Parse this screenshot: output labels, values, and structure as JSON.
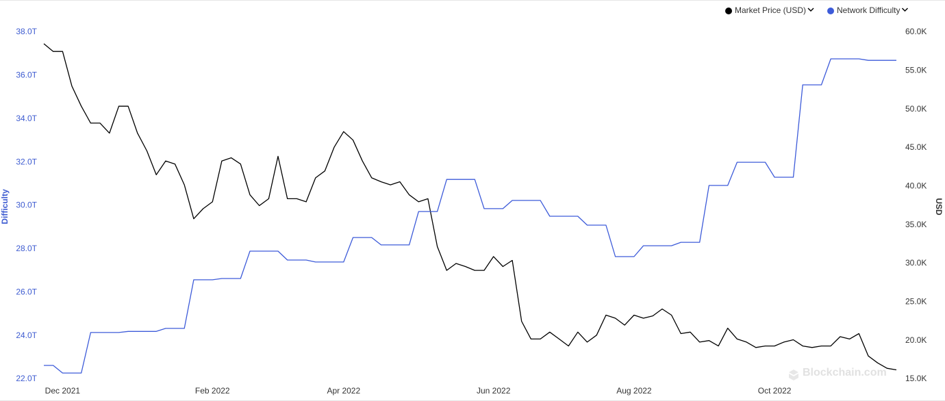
{
  "chart_data": {
    "type": "line",
    "legend_position": "top-right",
    "y_label": "Difficulty",
    "y2_label": "USD",
    "watermark": "Blockchain.com",
    "categories": [
      null,
      null,
      "Dec 2021",
      null,
      null,
      null,
      null,
      null,
      null,
      null,
      null,
      null,
      null,
      null,
      null,
      null,
      null,
      null,
      "Feb 2022",
      null,
      null,
      null,
      null,
      null,
      null,
      null,
      null,
      null,
      null,
      null,
      null,
      null,
      "Apr 2022",
      null,
      null,
      null,
      null,
      null,
      null,
      null,
      null,
      null,
      null,
      null,
      null,
      null,
      null,
      null,
      "Jun 2022",
      null,
      null,
      null,
      null,
      null,
      null,
      null,
      null,
      null,
      null,
      null,
      null,
      null,
      null,
      "Aug 2022",
      null,
      null,
      null,
      null,
      null,
      null,
      null,
      null,
      null,
      null,
      null,
      null,
      null,
      null,
      "Oct 2022",
      null,
      null,
      null,
      null,
      null,
      null,
      null,
      null,
      null,
      null,
      null,
      null,
      null
    ],
    "series": [
      {
        "name": "Market Price (USD)",
        "color": "#000000",
        "axis": "y2",
        "values": [
          58.5,
          57.5,
          57.5,
          53,
          50.4,
          48.2,
          48.2,
          46.9,
          50.4,
          50.4,
          46.9,
          44.6,
          41.5,
          43.3,
          42.9,
          40.2,
          35.8,
          37.1,
          38,
          43.3,
          43.7,
          42.9,
          38.9,
          37.5,
          38.4,
          43.9,
          38.4,
          38.4,
          38,
          41.1,
          42,
          45.1,
          47.1,
          46,
          43.3,
          41.1,
          40.6,
          40.2,
          40.6,
          38.9,
          38,
          38.4,
          32.2,
          29.1,
          30,
          29.6,
          29.1,
          29.1,
          30.9,
          29.6,
          30.4,
          22.5,
          20.2,
          20.2,
          21.1,
          20.2,
          19.3,
          21.1,
          19.8,
          20.7,
          23.3,
          22.9,
          22,
          23.3,
          22.9,
          23.2,
          24.1,
          23.3,
          20.9,
          21.1,
          19.8,
          20,
          19.3,
          21.6,
          20.2,
          19.8,
          19.1,
          19.3,
          19.3,
          19.8,
          20.1,
          19.3,
          19.1,
          19.3,
          19.3,
          20.5,
          20.2,
          20.9,
          18,
          17.1,
          16.4,
          16.2
        ]
      },
      {
        "name": "Network Difficulty",
        "color": "#3d5bd9",
        "values": [
          22.63,
          22.63,
          22.28,
          22.28,
          22.28,
          24.15,
          24.15,
          24.15,
          24.15,
          24.2,
          24.2,
          24.2,
          24.2,
          24.34,
          24.34,
          24.34,
          26.58,
          26.58,
          26.58,
          26.64,
          26.64,
          26.64,
          27.9,
          27.9,
          27.9,
          27.9,
          27.49,
          27.49,
          27.49,
          27.4,
          27.4,
          27.4,
          27.4,
          28.53,
          28.53,
          28.53,
          28.19,
          28.19,
          28.19,
          28.19,
          29.73,
          29.73,
          29.73,
          31.21,
          31.21,
          31.21,
          31.21,
          29.86,
          29.86,
          29.86,
          30.24,
          30.24,
          30.24,
          30.24,
          29.51,
          29.51,
          29.51,
          29.51,
          29.1,
          29.1,
          29.1,
          27.65,
          27.65,
          27.65,
          28.15,
          28.15,
          28.15,
          28.15,
          28.31,
          28.31,
          28.31,
          30.93,
          30.93,
          30.93,
          32,
          32,
          32,
          32,
          31.31,
          31.31,
          31.31,
          35.57,
          35.57,
          35.57,
          36.77,
          36.77,
          36.77,
          36.77,
          36.7,
          36.7,
          36.7,
          36.7
        ]
      }
    ],
    "ylim": [
      22,
      38
    ],
    "yticks": [
      {
        "value": 22,
        "label": "22.0T"
      },
      {
        "value": 24,
        "label": "24.0T"
      },
      {
        "value": 26,
        "label": "26.0T"
      },
      {
        "value": 28,
        "label": "28.0T"
      },
      {
        "value": 30,
        "label": "30.0T"
      },
      {
        "value": 32,
        "label": "32.0T"
      },
      {
        "value": 34,
        "label": "34.0T"
      },
      {
        "value": 36,
        "label": "36.0T"
      },
      {
        "value": 38,
        "label": "38.0T"
      }
    ],
    "y2lim": [
      15,
      60
    ],
    "y2ticks": [
      {
        "value": 15,
        "label": "15.0K"
      },
      {
        "value": 20,
        "label": "20.0K"
      },
      {
        "value": 25,
        "label": "25.0K"
      },
      {
        "value": 30,
        "label": "30.0K"
      },
      {
        "value": 35,
        "label": "35.0K"
      },
      {
        "value": 40,
        "label": "40.0K"
      },
      {
        "value": 45,
        "label": "45.0K"
      },
      {
        "value": 50,
        "label": "50.0K"
      },
      {
        "value": 55,
        "label": "55.0K"
      },
      {
        "value": 60,
        "label": "60.0K"
      }
    ],
    "grid": false
  }
}
